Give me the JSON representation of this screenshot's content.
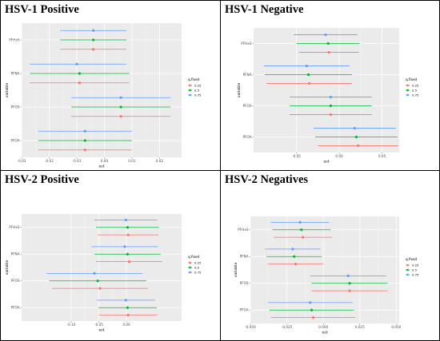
{
  "panels": [
    {
      "title": "HSV-1 Positive"
    },
    {
      "title": "HSV-1 Negative"
    },
    {
      "title": "HSV-2 Positive"
    },
    {
      "title": "HSV-2 Negatives"
    }
  ],
  "colors": {
    "q0.25": "#F8766D",
    "q0.5": "#00BA38",
    "q0.75": "#619CFF"
  },
  "chart_data": [
    {
      "type": "scatter",
      "title": "HSV-1 Positive",
      "xlabel": "est",
      "ylabel": "variable",
      "xlim": [
        -0.03,
        0.028
      ],
      "xticks": [
        "-0.03",
        "-0.02",
        "-0.01",
        "0.00",
        "0.01",
        "0.02"
      ],
      "xtick_values": [
        -0.03,
        -0.02,
        -0.01,
        0.0,
        0.01,
        0.02
      ],
      "categories": [
        "PFHxS",
        "PFNA",
        "PFOS",
        "PFOA"
      ],
      "legend": {
        "title": "q.fixed",
        "entries": [
          "0.25",
          "0.5",
          "0.75"
        ],
        "position": "right"
      },
      "series": [
        {
          "name": "0.25",
          "points": [
            {
              "category": "PFHxS",
              "est": -0.004,
              "lo": -0.016,
              "hi": 0.008
            },
            {
              "category": "PFNA",
              "est": -0.009,
              "lo": -0.027,
              "hi": 0.009
            },
            {
              "category": "PFOS",
              "est": 0.006,
              "lo": -0.012,
              "hi": 0.024
            },
            {
              "category": "PFOA",
              "est": -0.007,
              "lo": -0.024,
              "hi": 0.01
            }
          ]
        },
        {
          "name": "0.5",
          "points": [
            {
              "category": "PFHxS",
              "est": -0.004,
              "lo": -0.016,
              "hi": 0.008
            },
            {
              "category": "PFNA",
              "est": -0.009,
              "lo": -0.027,
              "hi": 0.009
            },
            {
              "category": "PFOS",
              "est": 0.006,
              "lo": -0.012,
              "hi": 0.024
            },
            {
              "category": "PFOA",
              "est": -0.007,
              "lo": -0.024,
              "hi": 0.01
            }
          ]
        },
        {
          "name": "0.75",
          "points": [
            {
              "category": "PFHxS",
              "est": -0.004,
              "lo": -0.016,
              "hi": 0.008
            },
            {
              "category": "PFNA",
              "est": -0.01,
              "lo": -0.027,
              "hi": 0.008
            },
            {
              "category": "PFOS",
              "est": 0.006,
              "lo": -0.012,
              "hi": 0.024
            },
            {
              "category": "PFOA",
              "est": -0.007,
              "lo": -0.024,
              "hi": 0.01
            }
          ]
        }
      ]
    },
    {
      "type": "scatter",
      "title": "HSV-1 Negative",
      "xlabel": "est",
      "ylabel": "variable",
      "xlim": [
        -0.1,
        0.07
      ],
      "xticks": [
        "-0.05",
        "0.00",
        "0.05"
      ],
      "xtick_values": [
        -0.05,
        0.0,
        0.05
      ],
      "categories": [
        "PFHxS",
        "PFNA",
        "PFOS",
        "PFOA"
      ],
      "legend": {
        "title": "q.fixed",
        "entries": [
          "0.25",
          "0.5",
          "0.75"
        ],
        "position": "right"
      },
      "series": [
        {
          "name": "0.25",
          "points": [
            {
              "category": "PFHxS",
              "est": -0.012,
              "lo": -0.047,
              "hi": 0.023
            },
            {
              "category": "PFNA",
              "est": -0.035,
              "lo": -0.085,
              "hi": 0.015
            },
            {
              "category": "PFOS",
              "est": -0.01,
              "lo": -0.058,
              "hi": 0.038
            },
            {
              "category": "PFOA",
              "est": 0.022,
              "lo": -0.025,
              "hi": 0.069
            }
          ]
        },
        {
          "name": "0.5",
          "points": [
            {
              "category": "PFHxS",
              "est": -0.013,
              "lo": -0.05,
              "hi": 0.024
            },
            {
              "category": "PFNA",
              "est": -0.036,
              "lo": -0.087,
              "hi": 0.015
            },
            {
              "category": "PFOS",
              "est": -0.01,
              "lo": -0.058,
              "hi": 0.038
            },
            {
              "category": "PFOA",
              "est": 0.02,
              "lo": -0.028,
              "hi": 0.068
            }
          ]
        },
        {
          "name": "0.75",
          "points": [
            {
              "category": "PFHxS",
              "est": -0.016,
              "lo": -0.053,
              "hi": 0.021
            },
            {
              "category": "PFNA",
              "est": -0.038,
              "lo": -0.088,
              "hi": 0.012
            },
            {
              "category": "PFOS",
              "est": -0.01,
              "lo": -0.058,
              "hi": 0.038
            },
            {
              "category": "PFOA",
              "est": 0.018,
              "lo": -0.03,
              "hi": 0.066
            }
          ]
        }
      ]
    },
    {
      "type": "scatter",
      "title": "HSV-2 Positive",
      "xlabel": "est",
      "ylabel": "variable",
      "xlim": [
        -0.19,
        0.1
      ],
      "xticks": [
        "-0.10",
        "-0.05",
        "0.00"
      ],
      "xtick_values": [
        -0.1,
        -0.05,
        0.0
      ],
      "categories": [
        "PFHxS",
        "PFNA",
        "PFOS",
        "PFOA"
      ],
      "legend": {
        "title": "q.fixed",
        "entries": [
          "0.25",
          "0.5",
          "0.75"
        ],
        "position": "right"
      },
      "series": [
        {
          "name": "0.25",
          "points": [
            {
              "category": "PFHxS",
              "est": 0.003,
              "lo": -0.052,
              "hi": 0.058
            },
            {
              "category": "PFNA",
              "est": 0.005,
              "lo": -0.055,
              "hi": 0.065
            },
            {
              "category": "PFOS",
              "est": -0.048,
              "lo": -0.135,
              "hi": 0.039
            },
            {
              "category": "PFOA",
              "est": 0.003,
              "lo": -0.05,
              "hi": 0.056
            }
          ]
        },
        {
          "name": "0.5",
          "points": [
            {
              "category": "PFHxS",
              "est": 0.002,
              "lo": -0.055,
              "hi": 0.059
            },
            {
              "category": "PFNA",
              "est": 0.002,
              "lo": -0.058,
              "hi": 0.062
            },
            {
              "category": "PFOS",
              "est": -0.052,
              "lo": -0.14,
              "hi": 0.036
            },
            {
              "category": "PFOA",
              "est": 0.002,
              "lo": -0.051,
              "hi": 0.055
            }
          ]
        },
        {
          "name": "0.75",
          "points": [
            {
              "category": "PFHxS",
              "est": -0.001,
              "lo": -0.058,
              "hi": 0.056
            },
            {
              "category": "PFNA",
              "est": -0.003,
              "lo": -0.063,
              "hi": 0.057
            },
            {
              "category": "PFOS",
              "est": -0.058,
              "lo": -0.145,
              "hi": 0.029
            },
            {
              "category": "PFOA",
              "est": -0.001,
              "lo": -0.054,
              "hi": 0.052
            }
          ]
        }
      ]
    },
    {
      "type": "scatter",
      "title": "HSV-2 Negatives",
      "xlabel": "est",
      "ylabel": "variable",
      "xlim": [
        -0.05,
        0.052
      ],
      "xticks": [
        "-0.050",
        "-0.025",
        "0.000",
        "0.025",
        "0.050"
      ],
      "xtick_values": [
        -0.05,
        -0.025,
        0.0,
        0.025,
        0.05
      ],
      "categories": [
        "PFHxS",
        "PFNA",
        "PFOS",
        "PFOA"
      ],
      "legend": {
        "title": "q.fixed",
        "entries": [
          "0.25",
          "0.5",
          "0.75"
        ],
        "position": "right"
      },
      "series": [
        {
          "name": "0.25",
          "points": [
            {
              "category": "PFHxS",
              "est": -0.014,
              "lo": -0.034,
              "hi": 0.006
            },
            {
              "category": "PFNA",
              "est": -0.019,
              "lo": -0.038,
              "hi": 0.0
            },
            {
              "category": "PFOS",
              "est": 0.018,
              "lo": -0.008,
              "hi": 0.044
            },
            {
              "category": "PFOA",
              "est": -0.007,
              "lo": -0.036,
              "hi": 0.022
            }
          ]
        },
        {
          "name": "0.5",
          "points": [
            {
              "category": "PFHxS",
              "est": -0.015,
              "lo": -0.035,
              "hi": 0.005
            },
            {
              "category": "PFNA",
              "est": -0.02,
              "lo": -0.039,
              "hi": -0.001
            },
            {
              "category": "PFOS",
              "est": 0.018,
              "lo": -0.008,
              "hi": 0.044
            },
            {
              "category": "PFOA",
              "est": -0.008,
              "lo": -0.037,
              "hi": 0.021
            }
          ]
        },
        {
          "name": "0.75",
          "points": [
            {
              "category": "PFHxS",
              "est": -0.016,
              "lo": -0.036,
              "hi": 0.004
            },
            {
              "category": "PFNA",
              "est": -0.021,
              "lo": -0.04,
              "hi": -0.002
            },
            {
              "category": "PFOS",
              "est": 0.017,
              "lo": -0.009,
              "hi": 0.043
            },
            {
              "category": "PFOA",
              "est": -0.009,
              "lo": -0.038,
              "hi": 0.02
            }
          ]
        }
      ]
    }
  ]
}
